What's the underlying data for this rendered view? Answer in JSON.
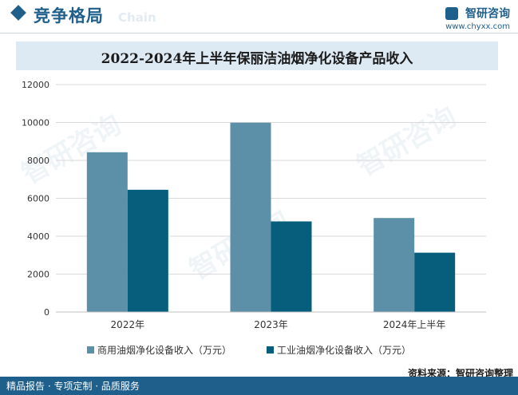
{
  "header": {
    "section_title": "竞争格局",
    "section_sub": "Chain",
    "brand_name": "智研咨询",
    "brand_url": "www.chyxx.com"
  },
  "watermark": "智研咨询",
  "chart_data": {
    "type": "bar",
    "title": "2022-2024年上半年保丽洁油烟净化设备产品收入",
    "categories": [
      "2022年",
      "2023年",
      "2024年上半年"
    ],
    "series": [
      {
        "name": "商用油烟净化设备收入（万元）",
        "values": [
          8430,
          9990,
          4960
        ],
        "color": "#5b90a8"
      },
      {
        "name": "工业油烟净化设备收入（万元）",
        "values": [
          6450,
          4780,
          3130
        ],
        "color": "#065e7c"
      }
    ],
    "ylim": [
      0,
      12000
    ],
    "yticks": [
      "0",
      "2000",
      "4000",
      "6000",
      "8000",
      "10000",
      "12000"
    ],
    "grid": true,
    "legend_position": "bottom"
  },
  "footer": {
    "left": "精品报告 · 专项定制 · 品质服务",
    "source": "资料来源：智研咨询整理"
  }
}
